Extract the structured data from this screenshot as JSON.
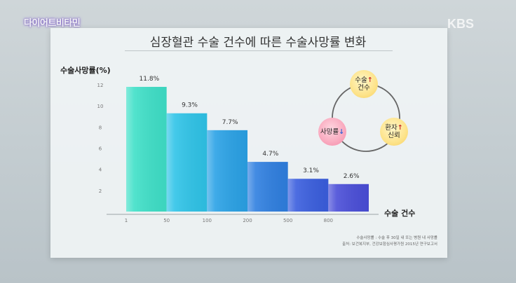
{
  "broadcast": {
    "program_logo": "다이어트비타민",
    "channel_logo": "KBS"
  },
  "chart_data": {
    "type": "bar",
    "title": "심장혈관 수술 건수에 따른 수술사망률 변화",
    "ylabel": "수술사망률(%)",
    "xlabel": "수술 건수",
    "ylim": [
      0,
      12
    ],
    "y_ticks": [
      "2",
      "4",
      "6",
      "8",
      "10",
      "12"
    ],
    "x_ticks": [
      "1",
      "50",
      "100",
      "200",
      "500",
      "800"
    ],
    "categories": [
      "1-50",
      "50-100",
      "100-200",
      "200-500",
      "500-800",
      "800+"
    ],
    "values": [
      11.8,
      9.3,
      7.7,
      4.7,
      3.1,
      2.6
    ],
    "value_labels": [
      "11.8%",
      "9.3%",
      "7.7%",
      "4.7%",
      "3.1%",
      "2.6%"
    ],
    "colors": [
      "#3fe0c8",
      "#2fc4e8",
      "#2aa2e6",
      "#2f7fe0",
      "#3a5ede",
      "#4a4ed8"
    ],
    "grid": false
  },
  "cycle_diagram": {
    "node_surgery": {
      "line1": "수술",
      "line2": "건수",
      "arrow": "↑"
    },
    "node_trust": {
      "line1": "환자",
      "line2": "신뢰",
      "arrow": "↑"
    },
    "node_mortality": {
      "label": "사망률",
      "arrow": "↓"
    }
  },
  "footnote": {
    "line1": "수술사망률 : 수술 후 30일 내 또는 병원 내 사망률",
    "line2": "출처: 보건복지부, 건강보험심사평가원 2015년 연구보고서"
  }
}
